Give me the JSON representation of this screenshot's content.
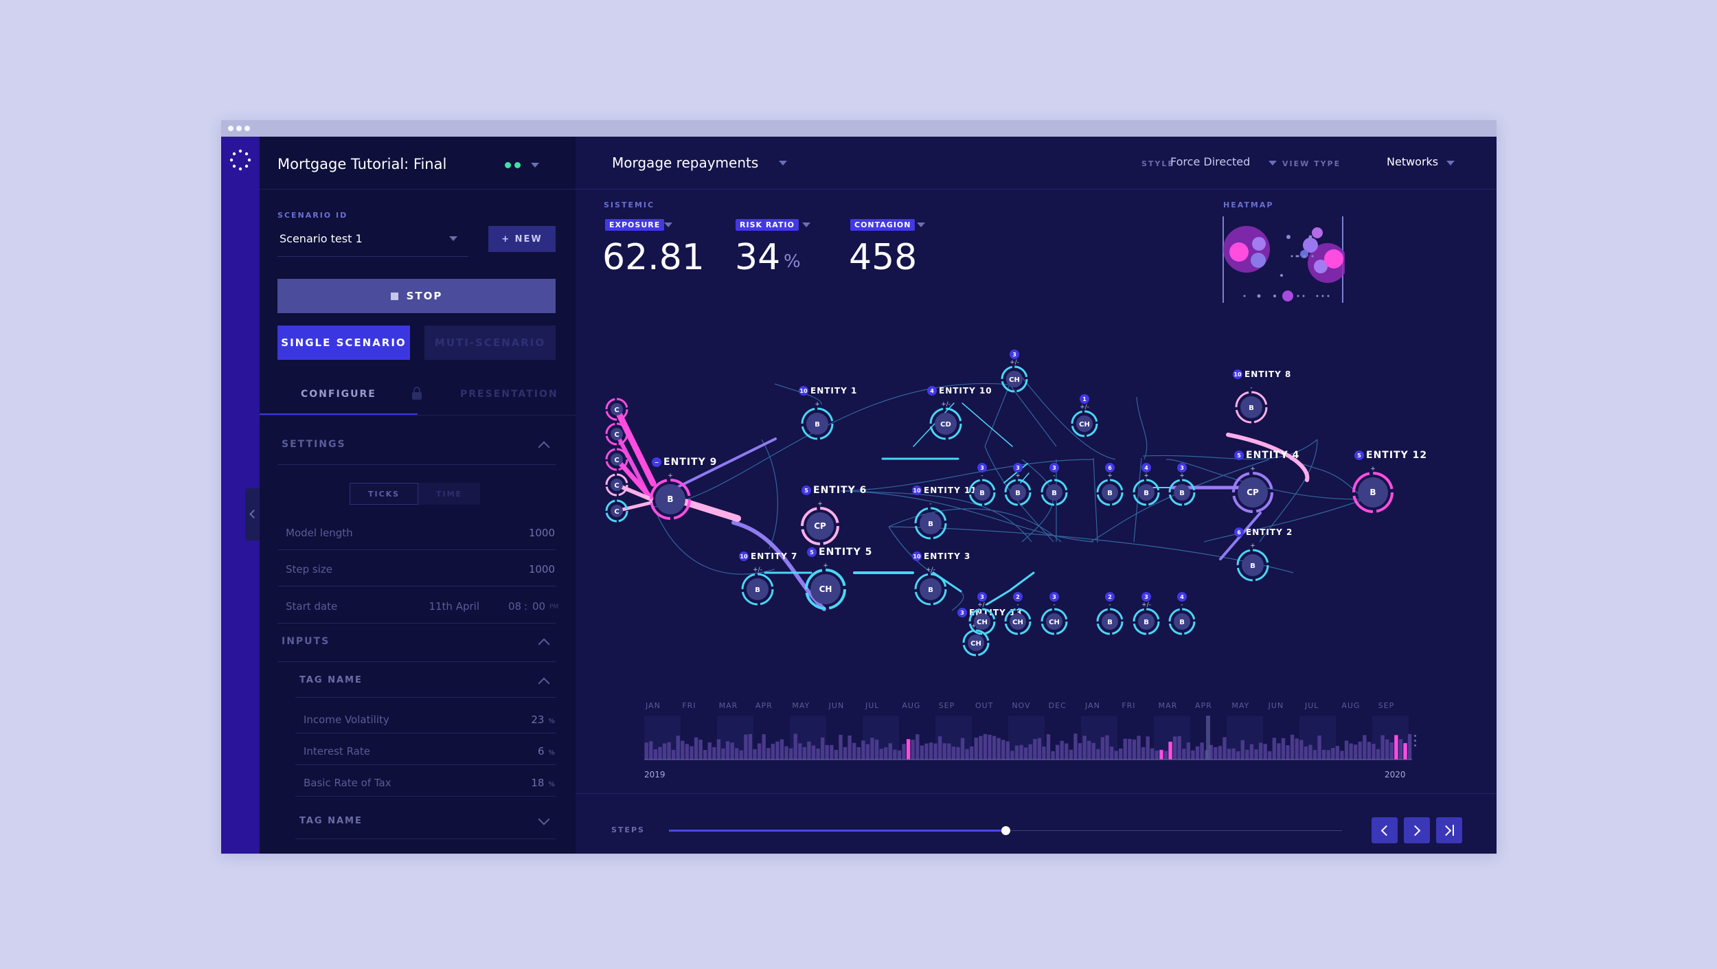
{
  "app": {
    "title": "Mortgage Tutorial: Final",
    "colors": {
      "accent": "#4338e6",
      "pink": "#e94bde",
      "cyan": "#4bd6f5",
      "status": "#3ee0a5"
    }
  },
  "sidebar": {
    "scenario_label": "SCENARIO ID",
    "scenario_value": "Scenario test 1",
    "new_label": "+ NEW",
    "stop_label": "STOP",
    "single_label": "SINGLE SCENARIO",
    "multi_label": "MUTI-SCENARIO",
    "tabs": {
      "configure": "CONFIGURE",
      "presentation": "PRESENTATION"
    },
    "settings": {
      "title": "SETTINGS",
      "toggle": {
        "ticks": "TICKS",
        "time": "TIME"
      },
      "rows": [
        {
          "label": "Model length",
          "value": "1000"
        },
        {
          "label": "Step size",
          "value": "1000"
        }
      ],
      "start_date": {
        "label": "Start date",
        "date": "11th April",
        "hour": "08",
        "minute": "00",
        "ampm": "PM"
      }
    },
    "inputs": {
      "title": "INPUTS",
      "tag1": "TAG NAME",
      "rows": [
        {
          "label": "Income Volatility",
          "value": "23",
          "unit": "%"
        },
        {
          "label": "Interest Rate",
          "value": "6",
          "unit": "%"
        },
        {
          "label": "Basic Rate of Tax",
          "value": "18",
          "unit": "%"
        }
      ],
      "tag2": "TAG NAME"
    }
  },
  "header": {
    "view_title": "Morgage repayments",
    "style_label": "STYLE",
    "style_value": "Force Directed",
    "viewtype_label": "VIEW TYPE",
    "viewtype_value": "Networks"
  },
  "metrics": {
    "group_label": "SISTEMIC",
    "items": [
      {
        "label": "EXPOSURE",
        "value": "62.81",
        "unit": ""
      },
      {
        "label": "RISK RATIO",
        "value": "34",
        "unit": "%"
      },
      {
        "label": "CONTAGION",
        "value": "458",
        "unit": ""
      }
    ],
    "heatmap_label": "HEATMAP"
  },
  "network": {
    "nodes": [
      {
        "id": "c1",
        "text": "C"
      },
      {
        "id": "c2",
        "text": "C"
      },
      {
        "id": "c3",
        "text": "C"
      },
      {
        "id": "c4",
        "text": "C"
      },
      {
        "id": "c5",
        "text": "C"
      },
      {
        "id": "e9",
        "text": "B",
        "label": "ENTITY 9",
        "badge": "−",
        "sign": "+"
      },
      {
        "id": "e1",
        "text": "B",
        "label": "ENTITY 1",
        "badge": "10",
        "sign": "+"
      },
      {
        "id": "e6",
        "text": "CP",
        "label": "ENTITY 6",
        "badge": "5",
        "sign": "+"
      },
      {
        "id": "e7",
        "text": "B",
        "label": "ENTITY 7",
        "badge": "10",
        "sign": "+/-"
      },
      {
        "id": "e5",
        "text": "CH",
        "label": "ENTITY 5",
        "badge": "5",
        "sign": "+"
      },
      {
        "id": "e11",
        "text": "B",
        "label": "ENTITY 11",
        "badge": "10",
        "sign": "-"
      },
      {
        "id": "e3",
        "text": "B",
        "label": "ENTITY 3",
        "badge": "10",
        "sign": "+/-"
      },
      {
        "id": "e13",
        "text": "CH",
        "label": "ENTITY 13",
        "badge": "3",
        "sign": "+/-"
      },
      {
        "id": "e10",
        "text": "CD",
        "label": "ENTITY 10",
        "badge": "4",
        "sign": "+/-"
      },
      {
        "id": "tch",
        "text": "CH",
        "badge": "3",
        "sign": "+/-"
      },
      {
        "id": "rch",
        "text": "CH",
        "badge": "1",
        "sign": "+/-"
      },
      {
        "id": "b1",
        "text": "B",
        "badge": "3",
        "sign": "-"
      },
      {
        "id": "b2",
        "text": "B",
        "badge": "3",
        "sign": "+"
      },
      {
        "id": "b3",
        "text": "B",
        "badge": "3",
        "sign": "-"
      },
      {
        "id": "b4",
        "text": "B",
        "badge": "6",
        "sign": "+"
      },
      {
        "id": "b5",
        "text": "B",
        "badge": "4",
        "sign": "+"
      },
      {
        "id": "b6",
        "text": "B",
        "badge": "3",
        "sign": "+"
      },
      {
        "id": "h1",
        "text": "CH",
        "badge": "3",
        "sign": "+/-"
      },
      {
        "id": "h2",
        "text": "CH",
        "badge": "2",
        "sign": "-"
      },
      {
        "id": "h3",
        "text": "CH",
        "badge": "3",
        "sign": "-"
      },
      {
        "id": "h4",
        "text": "B",
        "badge": "2",
        "sign": "-"
      },
      {
        "id": "h5",
        "text": "B",
        "badge": "3",
        "sign": "+/-"
      },
      {
        "id": "h6",
        "text": "B",
        "badge": "4",
        "sign": "-"
      },
      {
        "id": "e8",
        "text": "B",
        "label": "ENTITY 8",
        "badge": "10",
        "sign": "-"
      },
      {
        "id": "e4",
        "text": "CP",
        "label": "ENTITY 4",
        "badge": "5",
        "sign": "+"
      },
      {
        "id": "e12",
        "text": "B",
        "label": "ENTITY 12",
        "badge": "5",
        "sign": "+"
      },
      {
        "id": "e2",
        "text": "B",
        "label": "ENTITY 2",
        "badge": "6",
        "sign": "+"
      }
    ]
  },
  "timeline": {
    "months": [
      "JAN",
      "FRI",
      "MAR",
      "APR",
      "MAY",
      "JUN",
      "JUL",
      "AUG",
      "SEP",
      "OUT",
      "NOV",
      "DEC",
      "JAN",
      "FRI",
      "MAR",
      "APR",
      "MAY",
      "JUN",
      "JUL",
      "AUG",
      "SEP"
    ],
    "start_year": "2019",
    "end_year": "2020"
  },
  "steps": {
    "label": "STEPS",
    "progress": 0.5
  }
}
